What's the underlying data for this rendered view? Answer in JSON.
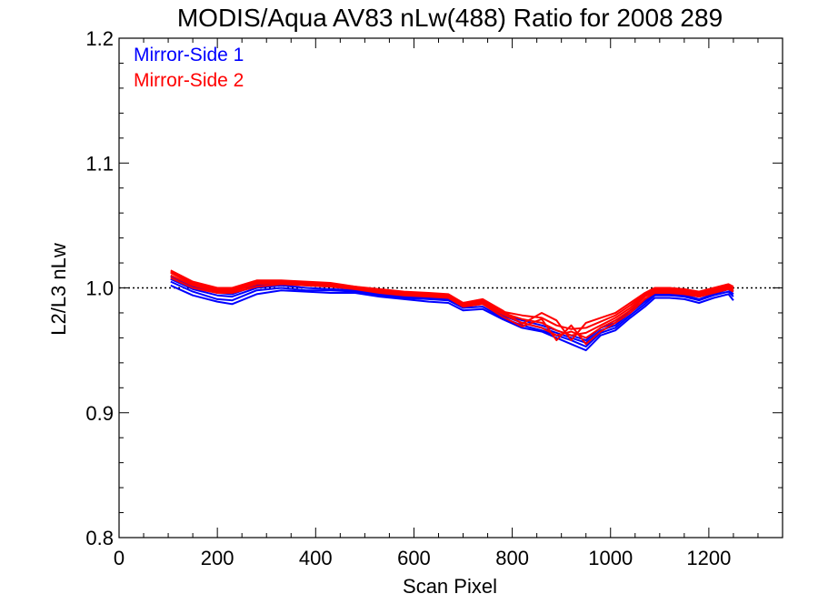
{
  "chart_data": {
    "type": "line",
    "title": "MODIS/Aqua AV83 nLw(488) Ratio for 2008 289",
    "xlabel": "Scan Pixel",
    "ylabel": "L2/L3 nLw",
    "xlim": [
      0,
      1350
    ],
    "ylim": [
      0.8,
      1.2
    ],
    "xticks": [
      "0",
      "200",
      "400",
      "600",
      "800",
      "1000",
      "1200"
    ],
    "yticks": [
      "0.8",
      "0.9",
      "1.0",
      "1.1",
      "1.2"
    ],
    "reference_line": 1.0,
    "legend_position": "top-left",
    "x": [
      105,
      150,
      200,
      230,
      280,
      330,
      380,
      430,
      480,
      530,
      580,
      630,
      670,
      700,
      740,
      780,
      820,
      860,
      890,
      920,
      950,
      980,
      1010,
      1040,
      1070,
      1090,
      1120,
      1150,
      1180,
      1210,
      1240,
      1250
    ],
    "series": [
      {
        "name": "Mirror-Side 1",
        "color": "#0000ff",
        "lines": [
          [
            1.002,
            0.994,
            0.989,
            0.987,
            0.995,
            0.998,
            0.997,
            0.996,
            0.996,
            0.993,
            0.991,
            0.989,
            0.988,
            0.982,
            0.983,
            0.975,
            0.968,
            0.965,
            0.96,
            0.955,
            0.95,
            0.962,
            0.966,
            0.976,
            0.985,
            0.992,
            0.992,
            0.991,
            0.988,
            0.992,
            0.995,
            0.99
          ],
          [
            1.005,
            0.997,
            0.991,
            0.99,
            0.998,
            1.0,
            0.998,
            0.998,
            0.997,
            0.994,
            0.992,
            0.991,
            0.99,
            0.984,
            0.985,
            0.976,
            0.97,
            0.966,
            0.962,
            0.958,
            0.953,
            0.964,
            0.968,
            0.978,
            0.987,
            0.994,
            0.994,
            0.993,
            0.99,
            0.994,
            0.997,
            0.993
          ],
          [
            1.007,
            0.999,
            0.994,
            0.993,
            1.0,
            1.002,
            1.0,
            0.999,
            0.998,
            0.995,
            0.993,
            0.992,
            0.991,
            0.985,
            0.987,
            0.978,
            0.972,
            0.968,
            0.964,
            0.96,
            0.956,
            0.966,
            0.97,
            0.98,
            0.989,
            0.995,
            0.995,
            0.994,
            0.991,
            0.995,
            0.999,
            0.995
          ],
          [
            1.009,
            1.001,
            0.996,
            0.995,
            1.002,
            1.003,
            1.002,
            1.001,
            0.999,
            0.996,
            0.994,
            0.993,
            0.992,
            0.986,
            0.988,
            0.979,
            0.974,
            0.97,
            0.966,
            0.962,
            0.958,
            0.968,
            0.972,
            0.982,
            0.99,
            0.997,
            0.996,
            0.995,
            0.993,
            0.996,
            1.001,
            0.997
          ]
        ]
      },
      {
        "name": "Mirror-Side 2",
        "color": "#ff0000",
        "lines": [
          [
            1.008,
            1.0,
            0.996,
            0.996,
            1.001,
            1.003,
            1.002,
            1.001,
            0.999,
            0.996,
            0.994,
            0.993,
            0.992,
            0.985,
            0.987,
            0.977,
            0.969,
            0.975,
            0.958,
            0.97,
            0.955,
            0.965,
            0.972,
            0.98,
            0.991,
            0.996,
            0.996,
            0.995,
            0.993,
            0.996,
            0.999,
            0.997
          ],
          [
            1.01,
            1.002,
            0.997,
            0.997,
            1.003,
            1.004,
            1.003,
            1.002,
            1.0,
            0.997,
            0.995,
            0.994,
            0.993,
            0.986,
            0.988,
            0.979,
            0.972,
            0.968,
            0.962,
            0.965,
            0.96,
            0.968,
            0.974,
            0.982,
            0.993,
            0.997,
            0.997,
            0.996,
            0.994,
            0.997,
            1.0,
            0.998
          ],
          [
            1.012,
            1.003,
            0.998,
            0.998,
            1.004,
            1.005,
            1.004,
            1.003,
            1.0,
            0.998,
            0.996,
            0.995,
            0.994,
            0.987,
            0.989,
            0.98,
            0.975,
            0.972,
            0.966,
            0.962,
            0.964,
            0.97,
            0.976,
            0.984,
            0.994,
            0.998,
            0.998,
            0.997,
            0.995,
            0.998,
            1.001,
            0.999
          ],
          [
            1.013,
            1.004,
            0.999,
            0.999,
            1.005,
            1.005,
            1.004,
            1.003,
            1.001,
            0.998,
            0.996,
            0.995,
            0.994,
            0.988,
            0.99,
            0.981,
            0.978,
            0.976,
            0.97,
            0.967,
            0.968,
            0.973,
            0.978,
            0.986,
            0.995,
            0.999,
            0.999,
            0.998,
            0.996,
            0.999,
            1.002,
            1.0
          ],
          [
            1.014,
            1.005,
            1.0,
            1.0,
            1.006,
            1.006,
            1.005,
            1.004,
            1.001,
            0.999,
            0.997,
            0.996,
            0.995,
            0.988,
            0.991,
            0.982,
            0.971,
            0.98,
            0.974,
            0.958,
            0.972,
            0.976,
            0.98,
            0.988,
            0.996,
            1.0,
            1.0,
            0.999,
            0.997,
            1.0,
            1.003,
            1.001
          ]
        ]
      }
    ]
  }
}
